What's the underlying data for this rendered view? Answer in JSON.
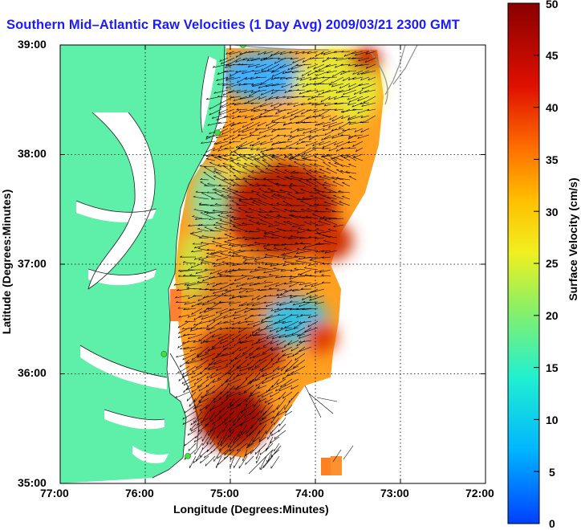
{
  "title": "Southern Mid–Atlantic Raw Velocities (1 Day Avg) 2009/03/21 2300 GMT",
  "map": {
    "x_axis": {
      "label": "Longitude (Degrees:Minutes)",
      "ticks": [
        "77:00",
        "76:00",
        "75:00",
        "74:00",
        "73:00",
        "72:00"
      ]
    },
    "y_axis": {
      "label": "Latitude (Degrees:Minutes)",
      "ticks": [
        "39:00",
        "38:00",
        "37:00",
        "36:00",
        "35:00"
      ]
    },
    "lon_range": [
      -77.0,
      -72.0
    ],
    "lat_range": [
      35.0,
      39.0
    ],
    "grid": "dotted",
    "land_color": "#5ef0a8",
    "background_color": "#ffffff"
  },
  "colorbar": {
    "label": "Surface Velocity (cm/s)",
    "ticks": [
      "50",
      "45",
      "40",
      "35",
      "30",
      "25",
      "20",
      "15",
      "10",
      "5",
      "0"
    ],
    "range": [
      0,
      50
    ],
    "colors": [
      "#0040ff",
      "#00c8ff",
      "#20f0c0",
      "#c8f020",
      "#ffd000",
      "#ff7000",
      "#e01000",
      "#8a0000"
    ]
  },
  "stations": [
    {
      "lon": -74.85,
      "lat": 39.0
    },
    {
      "lon": -75.15,
      "lat": 38.2
    },
    {
      "lon": -75.78,
      "lat": 36.18
    },
    {
      "lon": -75.5,
      "lat": 35.25
    }
  ]
}
